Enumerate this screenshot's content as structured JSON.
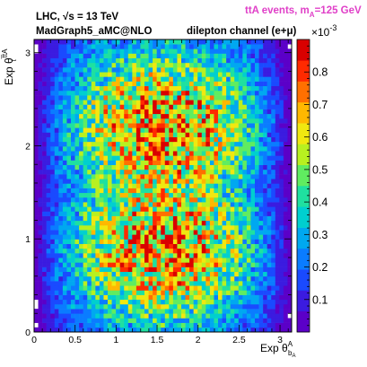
{
  "chart_data": {
    "type": "heatmap",
    "title": "ttA events, m_A=125 GeV",
    "title_main": "ttA events, m",
    "title_sub": "A",
    "title_tail": "=125 GeV",
    "title_color": "#e040c8",
    "annotations": {
      "line1_prefix": "LHC,",
      "line1_sqrt": "√s",
      "line1_tail": " = 13 TeV",
      "line2": "MadGraph5_aMC@NLO",
      "line3": "dilepton channel (e+μ)"
    },
    "xlabel": "Exp θbĀA",
    "xlabel_main": "Exp θ",
    "xlabel_sup": "A",
    "xlabel_sub1": "b",
    "xlabel_sub2": "A",
    "ylabel": "Exp θt̅tA",
    "ylabel_main": "Exp θ",
    "ylabel_sup": "t̅tA",
    "ylabel_sub": "t",
    "xlim": [
      0,
      3.1416
    ],
    "ylim": [
      0,
      3.1416
    ],
    "x_ticks": [
      0,
      0.5,
      1,
      1.5,
      2,
      2.5,
      3
    ],
    "x_tick_labels": [
      "0",
      "0.5",
      "1",
      "1.5",
      "2",
      "2.5",
      "3"
    ],
    "y_ticks": [
      0,
      1,
      2,
      3
    ],
    "y_tick_labels": [
      "0",
      "1",
      "2",
      "3"
    ],
    "colorbar": {
      "multiplier": "×10",
      "exponent": "-3",
      "range": [
        0,
        0.9
      ],
      "ticks": [
        0.1,
        0.2,
        0.3,
        0.4,
        0.5,
        0.6,
        0.7,
        0.8
      ],
      "tick_labels": [
        "0.1",
        "0.2",
        "0.3",
        "0.4",
        "0.5",
        "0.6",
        "0.7",
        "0.8"
      ],
      "palette": [
        "#5b00c8",
        "#3b1be0",
        "#1a4aff",
        "#0a7cff",
        "#00a8f0",
        "#00cfcf",
        "#1fe0a0",
        "#60ec60",
        "#b8f020",
        "#f0e810",
        "#ffb800",
        "#ff7000",
        "#ff2a00",
        "#d90000"
      ]
    },
    "grid": false,
    "bins": {
      "nx": 63,
      "ny": 63
    },
    "value_model": {
      "description": "2D density of events, sin-like in theta_bA and bimodal in theta_ttA",
      "peak_value": 0.75,
      "upper_cluster_theta_ttA": 2.3,
      "lower_cluster_theta_ttA": 0.8,
      "center_theta_bA": 1.57
    }
  }
}
